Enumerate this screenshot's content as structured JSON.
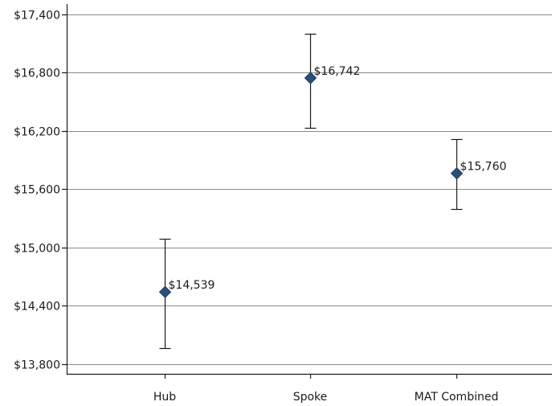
{
  "chart_data": {
    "type": "scatter",
    "title": "",
    "xlabel": "",
    "ylabel": "",
    "categories": [
      "Hub",
      "Spoke",
      "MAT Combined"
    ],
    "values": [
      14539,
      16742,
      15760
    ],
    "error_low": [
      13960,
      16230,
      15390
    ],
    "error_high": [
      15090,
      17200,
      16110
    ],
    "data_labels": [
      "$14,539",
      "$16,742",
      "$15,760"
    ],
    "ylim": [
      13800,
      17400
    ],
    "yticks": [
      13800,
      14400,
      15000,
      15600,
      16200,
      16800,
      17400
    ],
    "ytick_labels": [
      "$13,800",
      "$14,400",
      "$15,000",
      "$15,600",
      "$16,200",
      "$16,800",
      "$17,400"
    ],
    "marker": "diamond",
    "marker_color": "#2b4f7c",
    "grid": true,
    "legend": "none"
  }
}
